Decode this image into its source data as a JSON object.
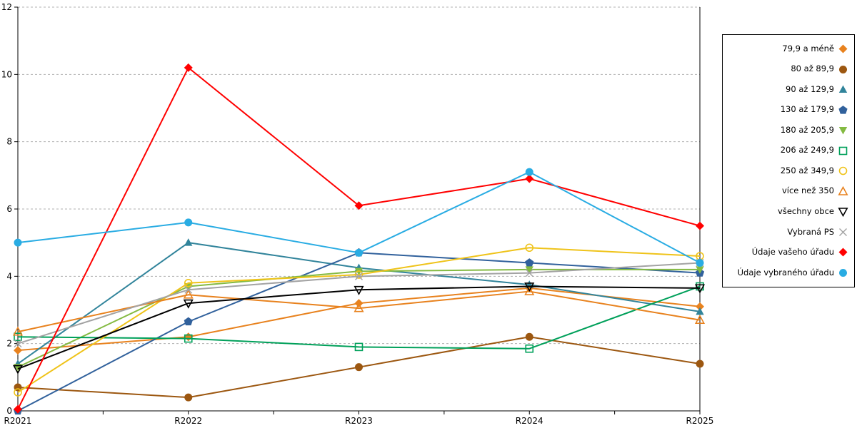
{
  "chart_data": {
    "type": "line",
    "title": "",
    "xlabel": "",
    "ylabel": "",
    "categories": [
      "R2021",
      "R2022",
      "R2023",
      "R2024",
      "R2025"
    ],
    "ylim": [
      0,
      12
    ],
    "yticks": [
      0,
      2,
      4,
      6,
      8,
      10,
      12
    ],
    "grid": "horizontal-dashed",
    "legend_position": "right",
    "axis_color": "#000000",
    "grid_color": "#b0b0b0",
    "series": [
      {
        "name": "79,9 a méně",
        "color": "#E8821E",
        "marker": "diamond-filled",
        "values": [
          1.8,
          2.2,
          3.2,
          3.65,
          3.1
        ]
      },
      {
        "name": "80 až 89,9",
        "color": "#9C5710",
        "marker": "circle-filled",
        "values": [
          0.7,
          0.4,
          1.3,
          2.2,
          1.4
        ]
      },
      {
        "name": "90 až 129,9",
        "color": "#31849B",
        "marker": "triangle-up-filled",
        "values": [
          1.4,
          5.0,
          4.25,
          3.75,
          2.95
        ]
      },
      {
        "name": "130 až 179,9",
        "color": "#31619C",
        "marker": "pentagon-filled",
        "values": [
          0.0,
          2.65,
          4.7,
          4.4,
          4.1
        ]
      },
      {
        "name": "180 až 205,9",
        "color": "#84BA42",
        "marker": "triangle-down-filled",
        "values": [
          1.3,
          3.7,
          4.15,
          4.2,
          4.2
        ]
      },
      {
        "name": "206 až 249,9",
        "color": "#00A05A",
        "marker": "square-open",
        "values": [
          2.2,
          2.15,
          1.9,
          1.85,
          3.7
        ]
      },
      {
        "name": "250 až 349,9",
        "color": "#EFC319",
        "marker": "circle-open",
        "values": [
          0.55,
          3.8,
          4.05,
          4.85,
          4.6
        ]
      },
      {
        "name": "více než 350",
        "color": "#E8821E",
        "marker": "triangle-up-open",
        "values": [
          2.35,
          3.45,
          3.05,
          3.55,
          2.7
        ]
      },
      {
        "name": "všechny obce",
        "color": "#000000",
        "marker": "triangle-down-open",
        "values": [
          1.25,
          3.2,
          3.6,
          3.7,
          3.65
        ]
      },
      {
        "name": "Vybraná PS",
        "color": "#A3A3A3",
        "marker": "x",
        "values": [
          2.0,
          3.6,
          4.0,
          4.1,
          4.4
        ]
      },
      {
        "name": "Údaje vašeho úřadu",
        "color": "#FF0000",
        "marker": "diamond-filled",
        "values": [
          0.05,
          10.2,
          6.1,
          6.9,
          5.5
        ]
      },
      {
        "name": "Údaje vybraného úřadu",
        "color": "#29ACE3",
        "marker": "circle-filled",
        "values": [
          5.0,
          5.6,
          4.7,
          7.1,
          4.4
        ]
      }
    ]
  }
}
